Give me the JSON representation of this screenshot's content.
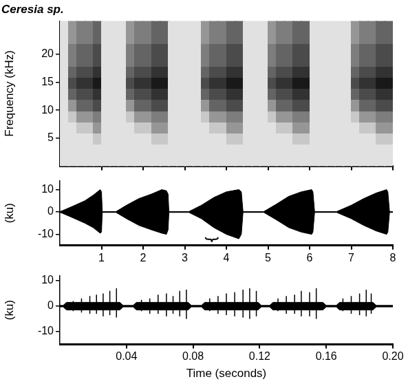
{
  "chart_data": [
    {
      "type": "heatmap",
      "title": "Ceresia sp.",
      "y_label": "Frequency (kHz)",
      "xlim": [
        0,
        8
      ],
      "xticks": [
        1,
        2,
        3,
        4,
        5,
        6,
        7,
        8
      ],
      "ylim": [
        0,
        26
      ],
      "yticks": [
        5,
        10,
        15,
        20
      ],
      "tick_labels": "y",
      "grid": false,
      "time_bins": [
        0,
        0.2,
        0.4,
        0.6,
        0.8,
        1,
        1.2,
        1.4,
        1.6,
        1.8,
        2,
        2.2,
        2.4,
        2.6,
        2.8,
        3,
        3.2,
        3.4,
        3.6,
        3.8,
        4,
        4.2,
        4.4,
        4.6,
        4.8,
        5,
        5.2,
        5.4,
        5.6,
        5.8,
        6,
        6.2,
        6.4,
        6.6,
        6.8,
        7,
        7.2,
        7.4,
        7.6,
        7.8,
        8
      ],
      "frequency_bins": [
        0,
        2,
        4,
        6,
        8,
        10,
        12,
        14,
        16,
        18,
        20,
        22,
        24,
        26
      ],
      "cells": [
        [
          1,
          1,
          1,
          1,
          1,
          1,
          1,
          1,
          1,
          1,
          1,
          1,
          1,
          1,
          1,
          1,
          1,
          1,
          1,
          1,
          1,
          1,
          1,
          1,
          1,
          1,
          1,
          1,
          1,
          1,
          1,
          1,
          1,
          1,
          1,
          1,
          1,
          1,
          1,
          1
        ],
        [
          1,
          1,
          1,
          1,
          1,
          1,
          1,
          1,
          1,
          1,
          1,
          1,
          1,
          1,
          1,
          1,
          1,
          1,
          1,
          1,
          1,
          1,
          1,
          1,
          1,
          1,
          1,
          1,
          1,
          1,
          1,
          1,
          1,
          1,
          1,
          1,
          1,
          1,
          1,
          1
        ],
        [
          1,
          1,
          1,
          1,
          2,
          1,
          1,
          1,
          1,
          1,
          1,
          2,
          2,
          1,
          1,
          1,
          1,
          1,
          1,
          1,
          2,
          2,
          1,
          1,
          1,
          1,
          1,
          1,
          2,
          2,
          1,
          1,
          1,
          1,
          1,
          1,
          1,
          1,
          2,
          2
        ],
        [
          1,
          1,
          2,
          2,
          4,
          1,
          1,
          1,
          1,
          2,
          2,
          4,
          4,
          1,
          1,
          1,
          1,
          1,
          2,
          2,
          4,
          4,
          1,
          1,
          1,
          1,
          2,
          2,
          4,
          4,
          1,
          1,
          1,
          1,
          1,
          1,
          2,
          2,
          4,
          4
        ],
        [
          1,
          2,
          4,
          4,
          5,
          1,
          1,
          1,
          2,
          4,
          4,
          5,
          5,
          1,
          1,
          1,
          1,
          2,
          4,
          4,
          5,
          5,
          1,
          1,
          1,
          2,
          4,
          4,
          5,
          5,
          1,
          1,
          1,
          1,
          1,
          2,
          4,
          4,
          5,
          5
        ],
        [
          1,
          4,
          6,
          6,
          7,
          1,
          1,
          1,
          4,
          6,
          6,
          7,
          7,
          1,
          1,
          1,
          1,
          4,
          6,
          6,
          7,
          7,
          1,
          1,
          1,
          4,
          6,
          6,
          7,
          7,
          1,
          1,
          1,
          1,
          1,
          4,
          6,
          6,
          7,
          7
        ],
        [
          1,
          6,
          7,
          7,
          8,
          1,
          1,
          1,
          6,
          7,
          7,
          8,
          8,
          1,
          1,
          1,
          1,
          6,
          7,
          7,
          8,
          8,
          1,
          1,
          1,
          6,
          7,
          7,
          8,
          8,
          1,
          1,
          1,
          1,
          1,
          6,
          7,
          7,
          8,
          8
        ],
        [
          1,
          7,
          8,
          8,
          9,
          1,
          1,
          1,
          7,
          8,
          8,
          9,
          9,
          1,
          1,
          1,
          1,
          7,
          8,
          8,
          9,
          9,
          1,
          1,
          1,
          7,
          8,
          8,
          9,
          9,
          1,
          1,
          1,
          1,
          1,
          7,
          8,
          8,
          9,
          9
        ],
        [
          1,
          6,
          7,
          7,
          8,
          1,
          1,
          1,
          6,
          7,
          7,
          8,
          8,
          1,
          1,
          1,
          1,
          6,
          7,
          7,
          8,
          8,
          1,
          1,
          1,
          6,
          7,
          7,
          8,
          8,
          1,
          1,
          1,
          1,
          1,
          6,
          7,
          7,
          8,
          8
        ],
        [
          1,
          5,
          6,
          6,
          7,
          1,
          1,
          1,
          5,
          6,
          6,
          7,
          7,
          1,
          1,
          1,
          1,
          5,
          6,
          6,
          7,
          7,
          1,
          1,
          1,
          5,
          6,
          6,
          7,
          7,
          1,
          1,
          1,
          1,
          1,
          5,
          6,
          6,
          7,
          7
        ],
        [
          1,
          5,
          6,
          6,
          7,
          1,
          1,
          1,
          5,
          6,
          6,
          7,
          7,
          1,
          1,
          1,
          1,
          5,
          6,
          6,
          7,
          7,
          1,
          1,
          1,
          5,
          6,
          6,
          7,
          7,
          1,
          1,
          1,
          1,
          1,
          5,
          6,
          6,
          7,
          7
        ],
        [
          1,
          4,
          5,
          5,
          6,
          1,
          1,
          1,
          4,
          5,
          5,
          6,
          6,
          1,
          1,
          1,
          1,
          4,
          5,
          5,
          6,
          6,
          1,
          1,
          1,
          4,
          5,
          5,
          6,
          6,
          1,
          1,
          1,
          1,
          1,
          4,
          5,
          5,
          6,
          6
        ],
        [
          1,
          4,
          5,
          5,
          6,
          1,
          1,
          1,
          4,
          5,
          5,
          6,
          6,
          1,
          1,
          1,
          1,
          4,
          5,
          5,
          6,
          6,
          1,
          1,
          1,
          4,
          5,
          5,
          6,
          6,
          1,
          1,
          1,
          1,
          1,
          4,
          5,
          5,
          6,
          6
        ]
      ]
    },
    {
      "type": "line",
      "y_label": "(ku)",
      "xlim": [
        0,
        8
      ],
      "xticks": [
        1,
        2,
        3,
        4,
        5,
        6,
        7,
        8
      ],
      "ylim": [
        -15,
        14
      ],
      "yticks": [
        -10,
        0,
        10
      ],
      "grid": false,
      "x": [
        0,
        0.05,
        0.3,
        0.6,
        0.8,
        0.97,
        1.0,
        1.02,
        1.35,
        1.6,
        1.9,
        2.2,
        2.45,
        2.56,
        2.6,
        2.62,
        3.1,
        3.4,
        3.7,
        4.0,
        4.3,
        4.36,
        4.4,
        4.9,
        5.2,
        5.5,
        5.8,
        6.05,
        6.08,
        6.12,
        6.65,
        7.0,
        7.3,
        7.6,
        7.85,
        7.88,
        7.92,
        8.0
      ],
      "series": [
        {
          "color": "#000000",
          "values": [
            0.2,
            0.5,
            2.5,
            5,
            7.5,
            10,
            9,
            0.2,
            0.2,
            3,
            6,
            8,
            10,
            9.5,
            8,
            0.2,
            0.2,
            3,
            6.5,
            9,
            10,
            9,
            0.2,
            0.2,
            3.5,
            7,
            9,
            10,
            9,
            0.2,
            0.2,
            3,
            6,
            8.5,
            10,
            9,
            0.2,
            0.2
          ]
        },
        {
          "color": "#000000",
          "values": [
            -0.2,
            -0.5,
            -2.5,
            -5,
            -7,
            -9.5,
            -9,
            -0.2,
            -0.2,
            -3,
            -6,
            -8,
            -9.5,
            -10,
            -8,
            -0.2,
            -0.2,
            -3,
            -7,
            -10,
            -12,
            -10,
            -0.2,
            -0.2,
            -3.5,
            -7,
            -9,
            -10,
            -9,
            -0.2,
            -0.2,
            -3,
            -6,
            -8.5,
            -10,
            -9,
            -0.2,
            -0.2
          ]
        }
      ],
      "bracket": [
        3.5,
        3.8
      ]
    },
    {
      "type": "line",
      "x_label": "Time (seconds)",
      "y_label": "(ku)",
      "xlim": [
        0,
        0.2
      ],
      "xticks": [
        0.04,
        0.08,
        0.12,
        0.16,
        {
          "value": 0.2,
          "label": "0.20"
        }
      ],
      "ylim": [
        -15,
        12
      ],
      "yticks": [
        -10,
        0,
        10
      ],
      "grid": false,
      "x": [
        0,
        0.002,
        0.004,
        0.036,
        0.038,
        0.044,
        0.046,
        0.077,
        0.079,
        0.085,
        0.087,
        0.119,
        0.121,
        0.126,
        0.128,
        0.158,
        0.16,
        0.166,
        0.168,
        0.188,
        0.19,
        0.2
      ],
      "series": [
        {
          "color": "#000000",
          "values": [
            0.3,
            0.3,
            1.5,
            1.5,
            0.3,
            0.3,
            1.5,
            1.5,
            0.3,
            0.3,
            1.5,
            1.5,
            0.3,
            0.3,
            1.5,
            1.5,
            0.3,
            0.3,
            1.5,
            1.5,
            0.3,
            0.3
          ]
        },
        {
          "color": "#000000",
          "values": [
            -0.3,
            -0.3,
            -1.5,
            -1.5,
            -0.3,
            -0.3,
            -1.5,
            -1.5,
            -0.3,
            -0.3,
            -1.5,
            -1.5,
            -0.3,
            -0.3,
            -1.5,
            -1.5,
            -0.3,
            -0.3,
            -1.5,
            -1.5,
            -0.3,
            -0.3
          ]
        }
      ],
      "spikes": {
        "x": [
          0.008,
          0.013,
          0.018,
          0.022,
          0.026,
          0.03,
          0.034,
          0.049,
          0.054,
          0.059,
          0.064,
          0.068,
          0.072,
          0.076,
          0.09,
          0.095,
          0.1,
          0.105,
          0.11,
          0.114,
          0.118,
          0.131,
          0.136,
          0.141,
          0.145,
          0.15,
          0.154,
          0.17,
          0.175,
          0.18,
          0.184,
          0.187
        ],
        "upper": [
          2,
          3,
          4,
          4.5,
          5,
          6,
          7,
          2.5,
          3,
          4.5,
          5,
          4,
          6,
          6.5,
          3,
          4,
          5,
          5.5,
          6.5,
          7,
          6,
          3,
          4,
          4.5,
          6,
          5.5,
          7,
          3,
          4,
          5,
          6.5,
          5
        ],
        "lower": [
          -2,
          -2.5,
          -3,
          -3,
          -4,
          -3.5,
          -4.5,
          -2,
          -3,
          -3,
          -4,
          -3,
          -4,
          -5,
          -2,
          -3,
          -3.5,
          -4,
          -4.5,
          -5,
          -4,
          -2,
          -3,
          -3,
          -4,
          -4,
          -5,
          -2,
          -3,
          -3.5,
          -4,
          -3
        ]
      }
    }
  ]
}
